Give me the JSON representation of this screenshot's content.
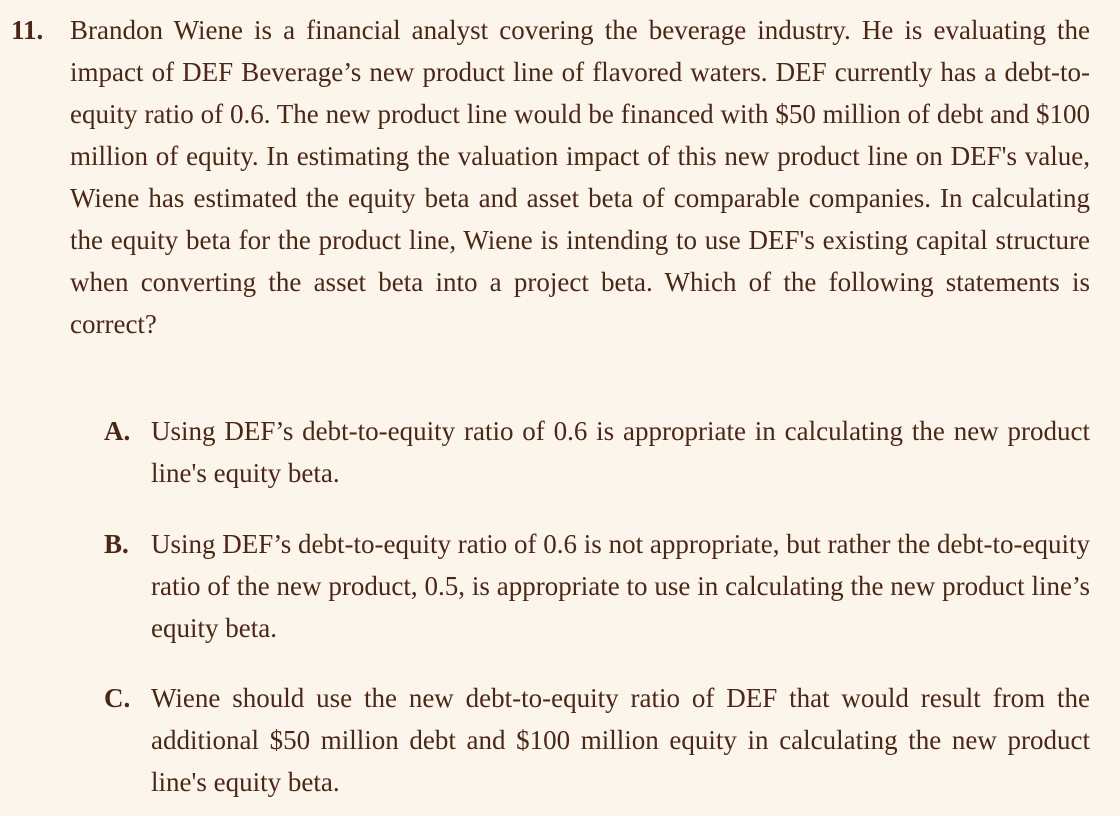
{
  "question": {
    "number": "11.",
    "stem": "Brandon Wiene is a financial analyst covering the beverage industry. He is evaluating the impact of DEF Beverage’s new product line of flavored waters. DEF currently has a debt-to-equity ratio of 0.6. The new product line would be financed with $50 million of debt and $100 million of equity. In estimating the valuation impact of this new product line on DEF's value, Wiene has estimated the equity beta and asset beta of comparable companies. In calculating the equity beta for the product line, Wiene is intending to use DEF's existing capital structure when converting the asset beta into a project beta. Which of the following statements is correct?"
  },
  "options": [
    {
      "letter": "A.",
      "text": "Using DEF’s debt-to-equity ratio of 0.6 is appropriate in calculating the new product line's equity beta."
    },
    {
      "letter": "B.",
      "text": "Using DEF’s debt-to-equity ratio of 0.6 is not appropriate, but rather the debt-to-equity ratio of the new product, 0.5, is appropriate to use in calculating the new product line’s equity beta."
    },
    {
      "letter": "C.",
      "text": "Wiene should use the new debt-to-equity ratio of DEF that would result from the additional $50 million debt and $100 million equity in calculating the new product line's equity beta."
    }
  ],
  "colors": {
    "background": "#fbf5ec",
    "text": "#4b2718"
  }
}
